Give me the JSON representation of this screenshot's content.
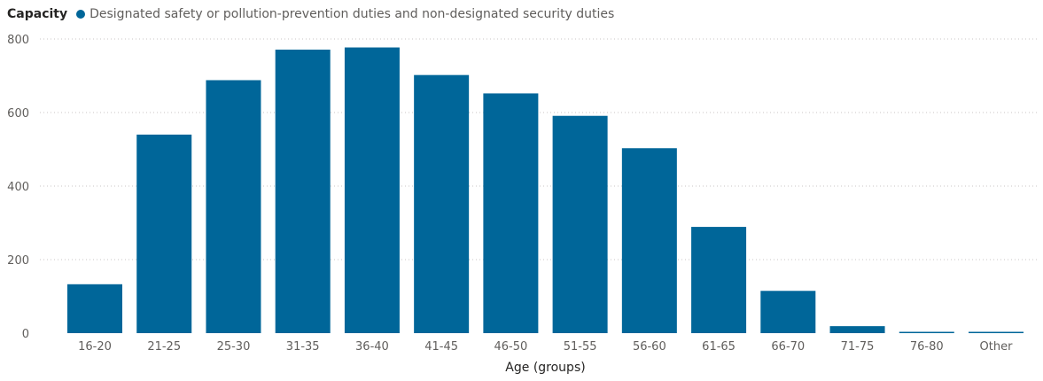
{
  "legend": {
    "title": "Capacity",
    "series_label": "Designated safety or pollution-prevention duties and non-designated security duties"
  },
  "colors": {
    "bar": "#006699",
    "grid": "#c8c6c4"
  },
  "chart_data": {
    "type": "bar",
    "title": "",
    "xlabel": "Age (groups)",
    "ylabel": "",
    "categories": [
      "16-20",
      "21-25",
      "25-30",
      "31-35",
      "36-40",
      "41-45",
      "46-50",
      "51-55",
      "56-60",
      "61-65",
      "66-70",
      "71-75",
      "76-80",
      "Other"
    ],
    "series": [
      {
        "name": "Designated safety or pollution-prevention duties and non-designated security duties",
        "values": [
          133,
          540,
          688,
          771,
          777,
          702,
          652,
          591,
          503,
          289,
          115,
          19,
          2,
          2
        ]
      }
    ],
    "ylim": [
      0,
      800
    ],
    "yticks": [
      0,
      200,
      400,
      600,
      800
    ],
    "grid": true,
    "legend_position": "top-left"
  }
}
